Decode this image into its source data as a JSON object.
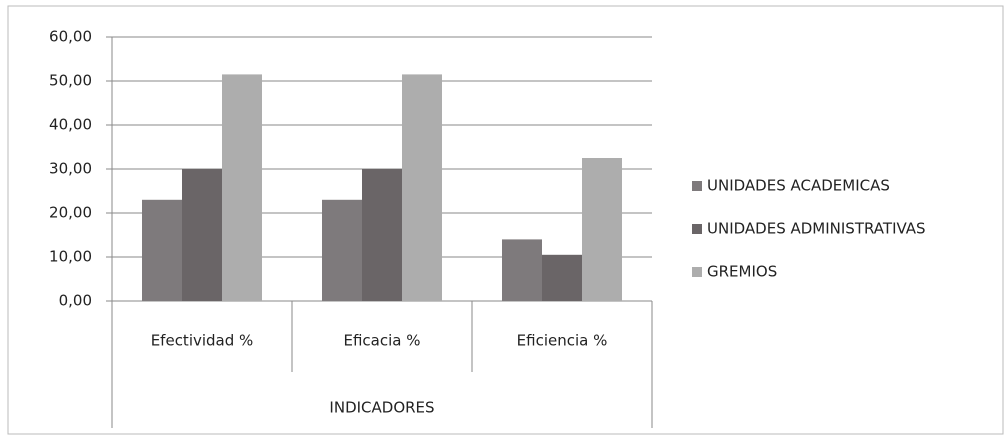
{
  "chart_data": {
    "type": "bar",
    "x_label": "INDICADORES",
    "categories": [
      "Efectividad %",
      "Eficacia %",
      "Eficiencia %"
    ],
    "series": [
      {
        "name": "UNIDADES ACADEMICAS",
        "color": "#7e7a7c",
        "values": [
          23,
          23,
          14
        ]
      },
      {
        "name": "UNIDADES ADMINISTRATIVAS",
        "color": "#6a6567",
        "values": [
          30,
          30,
          10.5
        ]
      },
      {
        "name": "GREMIOS",
        "color": "#adadad",
        "values": [
          51.5,
          51.5,
          32.5
        ]
      }
    ],
    "ylim": [
      0,
      60
    ],
    "yticks": [
      {
        "value": 0,
        "label": "0,00"
      },
      {
        "value": 10,
        "label": "10,00"
      },
      {
        "value": 20,
        "label": "20,00"
      },
      {
        "value": 30,
        "label": "30,00"
      },
      {
        "value": 40,
        "label": "40,00"
      },
      {
        "value": 50,
        "label": "50,00"
      },
      {
        "value": 60,
        "label": "60,00"
      }
    ],
    "grid": true,
    "legend": "right"
  }
}
